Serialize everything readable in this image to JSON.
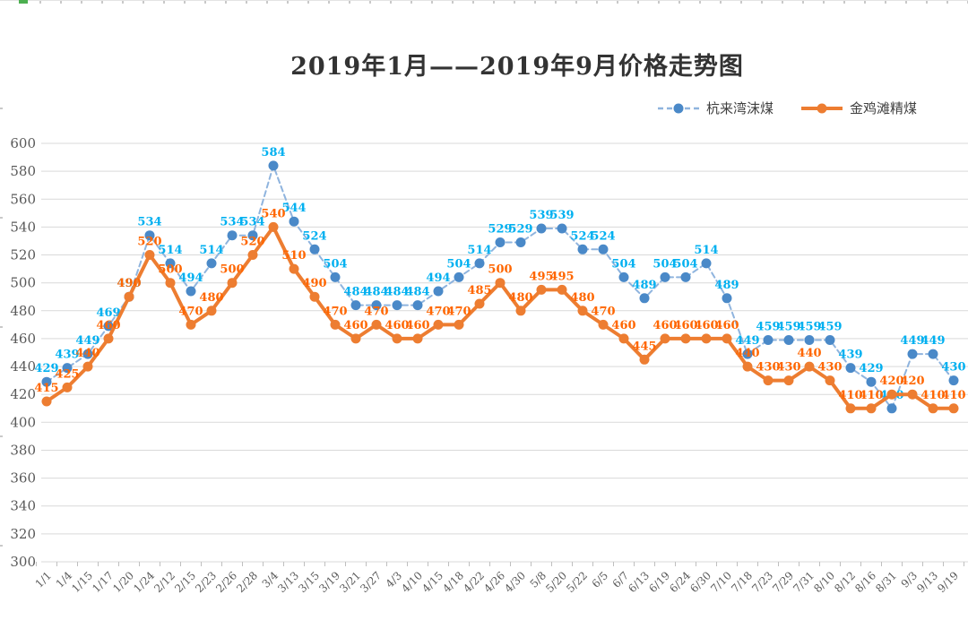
{
  "chart_data": {
    "type": "line",
    "title": "2019年1月——2019年9月价格走势图",
    "legend_position": "top-right",
    "grid": true,
    "ylim": [
      300,
      600
    ],
    "y_ticks": [
      600,
      580,
      560,
      540,
      520,
      500,
      480,
      460,
      440,
      420,
      400,
      380,
      360,
      340,
      320,
      300
    ],
    "categories": [
      "1/1",
      "1/4",
      "1/15",
      "1/17",
      "1/20",
      "1/24",
      "2/12",
      "2/15",
      "2/23",
      "2/26",
      "2/28",
      "3/4",
      "3/13",
      "3/15",
      "3/19",
      "3/21",
      "3/27",
      "4/3",
      "4/10",
      "4/15",
      "4/18",
      "4/22",
      "4/26",
      "4/30",
      "5/8",
      "5/20",
      "5/22",
      "6/5",
      "6/7",
      "6/13",
      "6/19",
      "6/24",
      "6/30",
      "7/10",
      "7/18",
      "7/23",
      "7/29",
      "7/31",
      "8/10",
      "8/12",
      "8/16",
      "8/31",
      "9/3",
      "9/13",
      "9/19"
    ],
    "series": [
      {
        "name": "杭来湾沫煤",
        "style": "dashed",
        "line_color": "#8FB4DE",
        "marker_color": "#4A89C8",
        "label_color": "#00B0F0",
        "values": [
          429,
          439,
          449,
          469,
          490,
          534,
          514,
          494,
          514,
          534,
          534,
          584,
          544,
          524,
          504,
          484,
          484,
          484,
          484,
          494,
          504,
          514,
          529,
          529,
          539,
          539,
          524,
          524,
          504,
          489,
          504,
          504,
          514,
          489,
          449,
          459,
          459,
          459,
          459,
          439,
          429,
          410,
          449,
          449,
          430
        ]
      },
      {
        "name": "金鸡滩精煤",
        "style": "solid",
        "line_color": "#ED7D31",
        "marker_color": "#ED7D31",
        "label_color": "#FF6600",
        "values": [
          415,
          425,
          440,
          460,
          490,
          520,
          500,
          470,
          480,
          500,
          520,
          540,
          510,
          490,
          470,
          460,
          470,
          460,
          460,
          470,
          470,
          485,
          500,
          480,
          495,
          495,
          480,
          470,
          460,
          445,
          460,
          460,
          460,
          460,
          440,
          430,
          430,
          440,
          430,
          410,
          410,
          420,
          420,
          410,
          410
        ]
      }
    ],
    "axis_text_color": "#595959",
    "gridline_color": "#D9D9D9"
  }
}
